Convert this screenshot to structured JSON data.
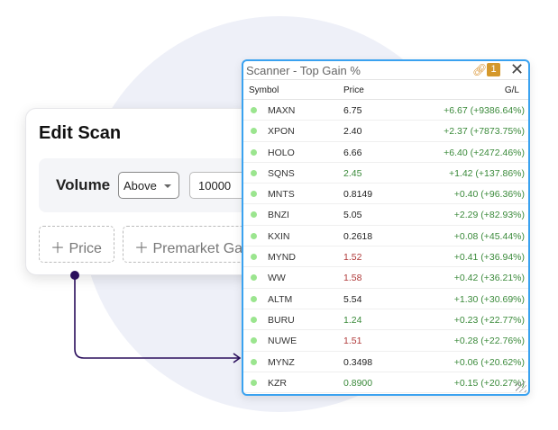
{
  "edit_scan": {
    "title": "Edit Scan",
    "filter_label": "Volume",
    "comparator": "Above",
    "value": "10000",
    "add_buttons": [
      "Price",
      "Premarket Ga"
    ]
  },
  "scanner": {
    "title": "Scanner - Top Gain %",
    "badge": "1",
    "columns": [
      "Symbol",
      "Price",
      "G/L"
    ],
    "rows": [
      {
        "symbol": "MAXN",
        "price": "6.75",
        "price_color": "#222222",
        "gl": "+6.67 (+9386.64%)"
      },
      {
        "symbol": "XPON",
        "price": "2.40",
        "price_color": "#222222",
        "gl": "+2.37 (+7873.75%)"
      },
      {
        "symbol": "HOLO",
        "price": "6.66",
        "price_color": "#222222",
        "gl": "+6.40 (+2472.46%)"
      },
      {
        "symbol": "SQNS",
        "price": "2.45",
        "price_color": "#3a8a3a",
        "gl": "+1.42 (+137.86%)"
      },
      {
        "symbol": "MNTS",
        "price": "0.8149",
        "price_color": "#222222",
        "gl": "+0.40 (+96.36%)"
      },
      {
        "symbol": "BNZI",
        "price": "5.05",
        "price_color": "#222222",
        "gl": "+2.29 (+82.93%)"
      },
      {
        "symbol": "KXIN",
        "price": "0.2618",
        "price_color": "#222222",
        "gl": "+0.08 (+45.44%)"
      },
      {
        "symbol": "MYND",
        "price": "1.52",
        "price_color": "#b03a3a",
        "gl": "+0.41 (+36.94%)"
      },
      {
        "symbol": "WW",
        "price": "1.58",
        "price_color": "#b03a3a",
        "gl": "+0.42 (+36.21%)"
      },
      {
        "symbol": "ALTM",
        "price": "5.54",
        "price_color": "#222222",
        "gl": "+1.30 (+30.69%)"
      },
      {
        "symbol": "BURU",
        "price": "1.24",
        "price_color": "#3a8a3a",
        "gl": "+0.23 (+22.77%)"
      },
      {
        "symbol": "NUWE",
        "price": "1.51",
        "price_color": "#b03a3a",
        "gl": "+0.28 (+22.76%)"
      },
      {
        "symbol": "MYNZ",
        "price": "0.3498",
        "price_color": "#222222",
        "gl": "+0.06 (+20.62%)"
      },
      {
        "symbol": "KZR",
        "price": "0.8900",
        "price_color": "#3a8a3a",
        "gl": "+0.15 (+20.27%)"
      }
    ]
  },
  "colors": {
    "accent": "#3aa2f0",
    "connector": "#2a0e5c",
    "badge": "#d4982b"
  }
}
